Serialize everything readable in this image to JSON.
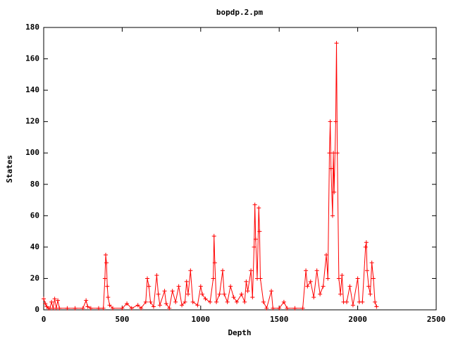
{
  "chart_data": {
    "type": "line",
    "title": "bopdp.2.pm",
    "x_label": "Depth",
    "y_label": "States",
    "color": "#ff0000",
    "marker": "+",
    "xlim": [
      0,
      2500
    ],
    "xticks": [
      0,
      500,
      1000,
      1500,
      2000,
      2500
    ],
    "ylim": [
      0,
      180
    ],
    "yticks": [
      0,
      20,
      40,
      60,
      80,
      100,
      120,
      140,
      160,
      180
    ],
    "x": [
      0,
      10,
      20,
      30,
      40,
      50,
      60,
      70,
      80,
      90,
      100,
      150,
      200,
      250,
      270,
      280,
      300,
      350,
      380,
      390,
      395,
      400,
      405,
      410,
      420,
      440,
      500,
      530,
      560,
      600,
      620,
      650,
      660,
      670,
      680,
      700,
      720,
      730,
      740,
      770,
      780,
      800,
      820,
      840,
      860,
      880,
      900,
      910,
      920,
      935,
      950,
      980,
      1000,
      1010,
      1030,
      1060,
      1080,
      1085,
      1090,
      1100,
      1120,
      1140,
      1150,
      1170,
      1190,
      1210,
      1230,
      1260,
      1280,
      1290,
      1300,
      1320,
      1330,
      1340,
      1345,
      1350,
      1360,
      1370,
      1375,
      1380,
      1400,
      1420,
      1450,
      1460,
      1500,
      1530,
      1550,
      1600,
      1650,
      1670,
      1680,
      1700,
      1720,
      1740,
      1760,
      1780,
      1800,
      1810,
      1820,
      1825,
      1830,
      1840,
      1845,
      1850,
      1860,
      1865,
      1870,
      1880,
      1890,
      1900,
      1910,
      1930,
      1950,
      1970,
      2000,
      2010,
      2030,
      2050,
      2055,
      2060,
      2070,
      2080,
      2090,
      2100,
      2110,
      2120
    ],
    "values": [
      7,
      4,
      2,
      1,
      1,
      5,
      1,
      7,
      1,
      6,
      1,
      1,
      1,
      1,
      6,
      2,
      1,
      1,
      1,
      20,
      35,
      30,
      15,
      8,
      3,
      1,
      1,
      4,
      1,
      3,
      1,
      5,
      20,
      15,
      5,
      2,
      22,
      10,
      3,
      12,
      4,
      1,
      12,
      5,
      15,
      3,
      5,
      18,
      10,
      25,
      5,
      3,
      15,
      10,
      7,
      5,
      20,
      47,
      30,
      5,
      10,
      25,
      10,
      5,
      15,
      8,
      5,
      10,
      5,
      18,
      12,
      25,
      8,
      40,
      67,
      45,
      20,
      65,
      50,
      20,
      5,
      1,
      12,
      1,
      1,
      5,
      1,
      1,
      1,
      25,
      15,
      18,
      8,
      25,
      10,
      15,
      35,
      20,
      100,
      120,
      90,
      60,
      100,
      75,
      120,
      170,
      100,
      20,
      10,
      22,
      5,
      5,
      15,
      3,
      20,
      5,
      5,
      40,
      43,
      25,
      15,
      10,
      30,
      20,
      5,
      2
    ]
  }
}
